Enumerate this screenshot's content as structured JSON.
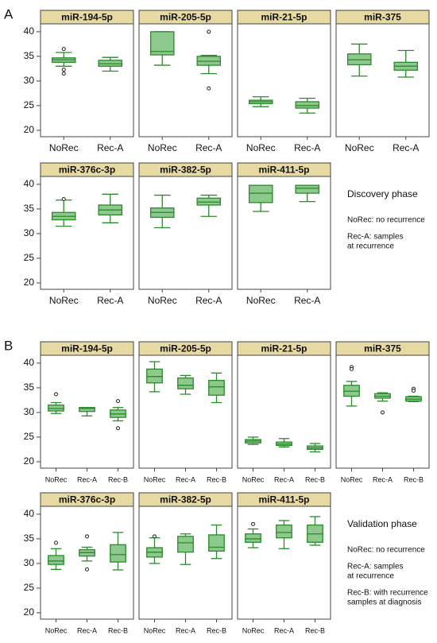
{
  "panels": [
    {
      "label": "A",
      "phase": "Discovery phase",
      "notes": [
        [
          "NoRec: no recurrence"
        ],
        [
          "Rec-A: samples",
          "at recurrence"
        ]
      ]
    },
    {
      "label": "B",
      "phase": "Validation phase",
      "notes": [
        [
          "NoRec: no recurrence"
        ],
        [
          "Rec-A: samples",
          "at recurrence"
        ],
        [
          "Rec-B: with recurrence",
          "samples at diagnosis"
        ]
      ]
    }
  ],
  "chart_data": [
    {
      "type": "box",
      "ylim": [
        18.7,
        41.6
      ],
      "yticks": [
        20,
        25,
        30,
        35,
        40
      ],
      "color": "#2b8a2b",
      "fill": "#8dc88d",
      "facets": [
        {
          "title": "miR-194-5p",
          "categories": [
            "NoRec",
            "Rec-A"
          ],
          "boxes": [
            {
              "whisker_low": 33,
              "q1": 33.8,
              "median": 34.3,
              "q3": 34.7,
              "whisker_high": 35.8,
              "outliers": [
                36.5,
                32.3,
                31.5
              ]
            },
            {
              "whisker_low": 32,
              "q1": 33,
              "median": 33.5,
              "q3": 34.2,
              "whisker_high": 34.8,
              "outliers": []
            }
          ]
        },
        {
          "title": "miR-205-5p",
          "categories": [
            "NoRec",
            "Rec-A"
          ],
          "boxes": [
            {
              "whisker_low": 33.2,
              "q1": 35.3,
              "median": 36,
              "q3": 40,
              "whisker_high": 40,
              "outliers": []
            },
            {
              "whisker_low": 31.5,
              "q1": 33.2,
              "median": 34,
              "q3": 35,
              "whisker_high": 35.2,
              "outliers": [
                40,
                28.5
              ]
            }
          ]
        },
        {
          "title": "miR-21-5p",
          "categories": [
            "NoRec",
            "Rec-A"
          ],
          "boxes": [
            {
              "whisker_low": 24.8,
              "q1": 25.4,
              "median": 25.8,
              "q3": 26.1,
              "whisker_high": 26.8,
              "outliers": []
            },
            {
              "whisker_low": 23.5,
              "q1": 24.5,
              "median": 25,
              "q3": 25.8,
              "whisker_high": 26.5,
              "outliers": []
            }
          ]
        },
        {
          "title": "miR-375",
          "categories": [
            "NoRec",
            "Rec-A"
          ],
          "boxes": [
            {
              "whisker_low": 31,
              "q1": 33.3,
              "median": 34.3,
              "q3": 35.5,
              "whisker_high": 37.5,
              "outliers": []
            },
            {
              "whisker_low": 30.8,
              "q1": 32.2,
              "median": 33,
              "q3": 33.8,
              "whisker_high": 36.2,
              "outliers": []
            }
          ]
        }
      ]
    },
    {
      "type": "box",
      "ylim": [
        18.7,
        41.6
      ],
      "yticks": [
        20,
        25,
        30,
        35,
        40
      ],
      "color": "#2b8a2b",
      "fill": "#8dc88d",
      "facets": [
        {
          "title": "miR-376c-3p",
          "categories": [
            "NoRec",
            "Rec-A"
          ],
          "boxes": [
            {
              "whisker_low": 31.5,
              "q1": 32.8,
              "median": 33.5,
              "q3": 34.3,
              "whisker_high": 36.8,
              "outliers": [
                37
              ]
            },
            {
              "whisker_low": 32.2,
              "q1": 33.8,
              "median": 34.8,
              "q3": 35.8,
              "whisker_high": 38,
              "outliers": []
            }
          ]
        },
        {
          "title": "miR-382-5p",
          "categories": [
            "NoRec",
            "Rec-A"
          ],
          "boxes": [
            {
              "whisker_low": 31.2,
              "q1": 33.3,
              "median": 34.3,
              "q3": 35.2,
              "whisker_high": 37.8,
              "outliers": []
            },
            {
              "whisker_low": 33.5,
              "q1": 35.8,
              "median": 36.4,
              "q3": 37.2,
              "whisker_high": 37.8,
              "outliers": []
            }
          ]
        },
        {
          "title": "miR-411-5p",
          "categories": [
            "NoRec",
            "Rec-A"
          ],
          "boxes": [
            {
              "whisker_low": 34.5,
              "q1": 36.3,
              "median": 38.2,
              "q3": 39.8,
              "whisker_high": 39.8,
              "outliers": []
            },
            {
              "whisker_low": 36.5,
              "q1": 38.2,
              "median": 39.2,
              "q3": 39.8,
              "whisker_high": 39.8,
              "outliers": []
            }
          ]
        }
      ]
    },
    {
      "type": "box",
      "ylim": [
        18.7,
        41.6
      ],
      "yticks": [
        20,
        25,
        30,
        35,
        40
      ],
      "color": "#2b8a2b",
      "fill": "#8dc88d",
      "facets": [
        {
          "title": "miR-194-5p",
          "categories": [
            "NoRec",
            "Rec-A",
            "Rec-B"
          ],
          "boxes": [
            {
              "whisker_low": 29.8,
              "q1": 30.3,
              "median": 30.8,
              "q3": 31.5,
              "whisker_high": 32,
              "outliers": [
                33.7
              ]
            },
            {
              "whisker_low": 29.3,
              "q1": 30.2,
              "median": 30.8,
              "q3": 31,
              "whisker_high": 31,
              "outliers": []
            },
            {
              "whisker_low": 28.3,
              "q1": 29,
              "median": 29.7,
              "q3": 30.5,
              "whisker_high": 31,
              "outliers": [
                32.3,
                26.8
              ]
            }
          ]
        },
        {
          "title": "miR-205-5p",
          "categories": [
            "NoRec",
            "Rec-A",
            "Rec-B"
          ],
          "boxes": [
            {
              "whisker_low": 34.2,
              "q1": 36,
              "median": 37.3,
              "q3": 38.8,
              "whisker_high": 40.3,
              "outliers": []
            },
            {
              "whisker_low": 33.7,
              "q1": 34.8,
              "median": 35.5,
              "q3": 37,
              "whisker_high": 37.5,
              "outliers": []
            },
            {
              "whisker_low": 32,
              "q1": 33.5,
              "median": 35.2,
              "q3": 36.5,
              "whisker_high": 38,
              "outliers": []
            }
          ]
        },
        {
          "title": "miR-21-5p",
          "categories": [
            "NoRec",
            "Rec-A",
            "Rec-B"
          ],
          "boxes": [
            {
              "whisker_low": 23.5,
              "q1": 23.8,
              "median": 24.2,
              "q3": 24.5,
              "whisker_high": 25,
              "outliers": []
            },
            {
              "whisker_low": 23,
              "q1": 23.3,
              "median": 23.6,
              "q3": 24,
              "whisker_high": 24.7,
              "outliers": []
            },
            {
              "whisker_low": 22,
              "q1": 22.5,
              "median": 22.8,
              "q3": 23.2,
              "whisker_high": 23.7,
              "outliers": []
            }
          ]
        },
        {
          "title": "miR-375",
          "categories": [
            "NoRec",
            "Rec-A",
            "Rec-B"
          ],
          "boxes": [
            {
              "whisker_low": 31.3,
              "q1": 33.3,
              "median": 34.3,
              "q3": 35.5,
              "whisker_high": 36.3,
              "outliers": [
                39.2,
                38.8
              ]
            },
            {
              "whisker_low": 32.3,
              "q1": 32.9,
              "median": 33.3,
              "q3": 33.8,
              "whisker_high": 34,
              "outliers": [
                30
              ]
            },
            {
              "whisker_low": 32.2,
              "q1": 32.3,
              "median": 32.7,
              "q3": 33.2,
              "whisker_high": 33.3,
              "outliers": [
                34.8,
                34.4
              ]
            }
          ]
        }
      ]
    },
    {
      "type": "box",
      "ylim": [
        18.7,
        41.6
      ],
      "yticks": [
        20,
        25,
        30,
        35,
        40
      ],
      "color": "#2b8a2b",
      "fill": "#8dc88d",
      "facets": [
        {
          "title": "miR-376c-3p",
          "categories": [
            "NoRec",
            "Rec-A",
            "Rec-B"
          ],
          "boxes": [
            {
              "whisker_low": 28.8,
              "q1": 29.8,
              "median": 30.5,
              "q3": 31.6,
              "whisker_high": 33,
              "outliers": [
                34.2
              ]
            },
            {
              "whisker_low": 30.5,
              "q1": 31.5,
              "median": 32.2,
              "q3": 32.8,
              "whisker_high": 33.3,
              "outliers": [
                35.5,
                28.8
              ]
            },
            {
              "whisker_low": 28.7,
              "q1": 30.3,
              "median": 31.8,
              "q3": 33.8,
              "whisker_high": 36.3,
              "outliers": []
            }
          ]
        },
        {
          "title": "miR-382-5p",
          "categories": [
            "NoRec",
            "Rec-A",
            "Rec-B"
          ],
          "boxes": [
            {
              "whisker_low": 30,
              "q1": 31.3,
              "median": 32.3,
              "q3": 33.2,
              "whisker_high": 35.2,
              "outliers": [
                35.5
              ]
            },
            {
              "whisker_low": 29.8,
              "q1": 32.3,
              "median": 34.2,
              "q3": 35.5,
              "whisker_high": 36,
              "outliers": []
            },
            {
              "whisker_low": 31,
              "q1": 32.5,
              "median": 33.3,
              "q3": 35.8,
              "whisker_high": 37.8,
              "outliers": []
            }
          ]
        },
        {
          "title": "miR-411-5p",
          "categories": [
            "NoRec",
            "Rec-A",
            "Rec-B"
          ],
          "boxes": [
            {
              "whisker_low": 33.2,
              "q1": 34.3,
              "median": 35,
              "q3": 36,
              "whisker_high": 37,
              "outliers": [
                38
              ]
            },
            {
              "whisker_low": 33,
              "q1": 35.2,
              "median": 36.3,
              "q3": 37.8,
              "whisker_high": 38.7,
              "outliers": []
            },
            {
              "whisker_low": 33.7,
              "q1": 34.3,
              "median": 36,
              "q3": 37.8,
              "whisker_high": 39.5,
              "outliers": []
            }
          ]
        }
      ]
    }
  ]
}
